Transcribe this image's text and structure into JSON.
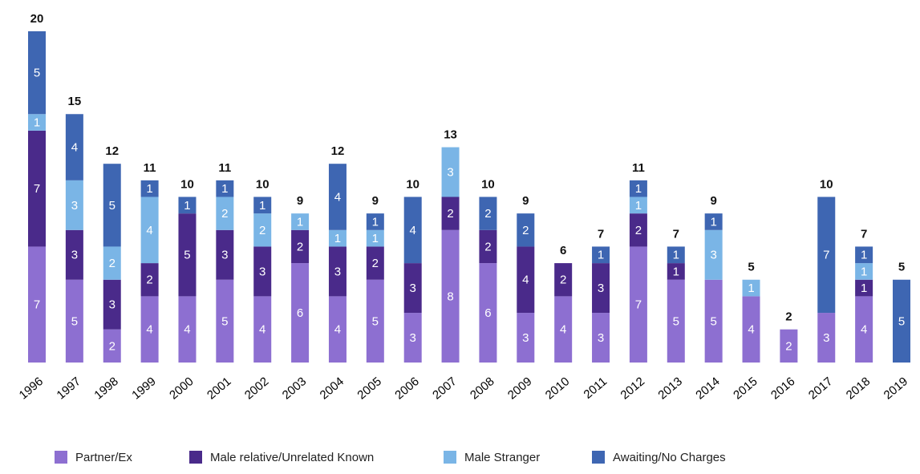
{
  "chart_data": {
    "type": "stacked_bar",
    "categories": [
      "1996",
      "1997",
      "1998",
      "1999",
      "2000",
      "2001",
      "2002",
      "2003",
      "2004",
      "2005",
      "2006",
      "2007",
      "2008",
      "2009",
      "2010",
      "2011",
      "2012",
      "2013",
      "2014",
      "2015",
      "2016",
      "2017",
      "2018",
      "2019"
    ],
    "series": [
      {
        "name": "Partner/Ex",
        "color": "#8d6fd1",
        "values": [
          7,
          5,
          2,
          4,
          4,
          5,
          4,
          6,
          4,
          5,
          3,
          8,
          6,
          3,
          4,
          3,
          7,
          5,
          5,
          4,
          2,
          3,
          4,
          null
        ]
      },
      {
        "name": "Male relative/Unrelated Known",
        "color": "#4a2a8a",
        "values": [
          7,
          3,
          3,
          2,
          5,
          3,
          3,
          2,
          3,
          2,
          3,
          2,
          2,
          4,
          2,
          3,
          2,
          1,
          null,
          null,
          null,
          null,
          1,
          null
        ]
      },
      {
        "name": "Male Stranger",
        "color": "#7ab5e6",
        "values": [
          1,
          3,
          2,
          4,
          null,
          2,
          2,
          1,
          1,
          1,
          null,
          3,
          null,
          null,
          null,
          null,
          1,
          null,
          3,
          1,
          null,
          null,
          1,
          null
        ]
      },
      {
        "name": "Awaiting/No Charges",
        "color": "#3e66b2",
        "values": [
          5,
          4,
          5,
          1,
          1,
          1,
          1,
          null,
          4,
          1,
          4,
          null,
          2,
          2,
          null,
          1,
          1,
          1,
          1,
          null,
          null,
          7,
          1,
          5
        ]
      }
    ],
    "totals": [
      20,
      15,
      12,
      11,
      10,
      11,
      10,
      9,
      12,
      9,
      10,
      13,
      10,
      9,
      6,
      7,
      11,
      7,
      9,
      5,
      2,
      10,
      7,
      5
    ],
    "ylim": [
      0,
      20
    ]
  }
}
